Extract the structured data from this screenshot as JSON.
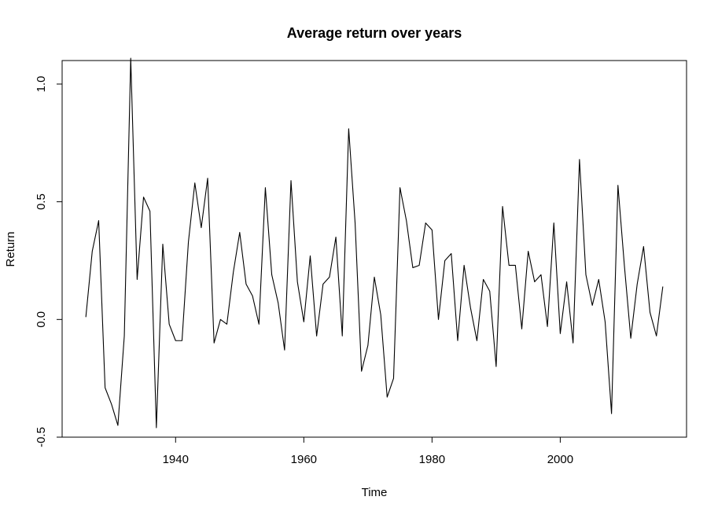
{
  "chart_data": {
    "type": "line",
    "title": "Average return over years",
    "xlabel": "Time",
    "ylabel": "Return",
    "xlim": [
      1922.3,
      2019.7
    ],
    "ylim": [
      -0.5,
      1.1
    ],
    "xticks": [
      1940,
      1960,
      1980,
      2000
    ],
    "yticks": [
      -0.5,
      0.0,
      0.5,
      1.0
    ],
    "xtick_labels": [
      "1940",
      "1960",
      "1980",
      "2000"
    ],
    "ytick_labels": [
      "-0.5",
      "0.0",
      "0.5",
      "1.0"
    ],
    "grid": false,
    "legend": "none",
    "line_color": "#000000",
    "x": [
      1926,
      1927,
      1928,
      1929,
      1930,
      1931,
      1932,
      1933,
      1934,
      1935,
      1936,
      1937,
      1938,
      1939,
      1940,
      1941,
      1942,
      1943,
      1944,
      1945,
      1946,
      1947,
      1948,
      1949,
      1950,
      1951,
      1952,
      1953,
      1954,
      1955,
      1956,
      1957,
      1958,
      1959,
      1960,
      1961,
      1962,
      1963,
      1964,
      1965,
      1966,
      1967,
      1968,
      1969,
      1970,
      1971,
      1972,
      1973,
      1974,
      1975,
      1976,
      1977,
      1978,
      1979,
      1980,
      1981,
      1982,
      1983,
      1984,
      1985,
      1986,
      1987,
      1988,
      1989,
      1990,
      1991,
      1992,
      1993,
      1994,
      1995,
      1996,
      1997,
      1998,
      1999,
      2000,
      2001,
      2002,
      2003,
      2004,
      2005,
      2006,
      2007,
      2008,
      2009,
      2010,
      2011,
      2012,
      2013,
      2014,
      2015,
      2016
    ],
    "values": [
      0.01,
      0.29,
      0.42,
      -0.29,
      -0.36,
      -0.45,
      -0.07,
      1.11,
      0.17,
      0.52,
      0.46,
      -0.46,
      0.32,
      -0.02,
      -0.09,
      -0.09,
      0.33,
      0.58,
      0.39,
      0.6,
      -0.1,
      0.0,
      -0.02,
      0.2,
      0.37,
      0.15,
      0.1,
      -0.02,
      0.56,
      0.19,
      0.07,
      -0.13,
      0.59,
      0.16,
      -0.01,
      0.27,
      -0.07,
      0.15,
      0.18,
      0.35,
      -0.07,
      0.81,
      0.41,
      -0.22,
      -0.11,
      0.18,
      0.02,
      -0.33,
      -0.25,
      0.56,
      0.42,
      0.22,
      0.23,
      0.41,
      0.38,
      0.0,
      0.25,
      0.28,
      -0.09,
      0.23,
      0.05,
      -0.09,
      0.17,
      0.12,
      -0.2,
      0.48,
      0.23,
      0.23,
      -0.04,
      0.29,
      0.16,
      0.19,
      -0.03,
      0.41,
      -0.06,
      0.16,
      -0.1,
      0.68,
      0.19,
      0.06,
      0.17,
      -0.01,
      -0.4,
      0.57,
      0.23,
      -0.08,
      0.15,
      0.31,
      0.03,
      -0.07,
      0.14
    ]
  }
}
